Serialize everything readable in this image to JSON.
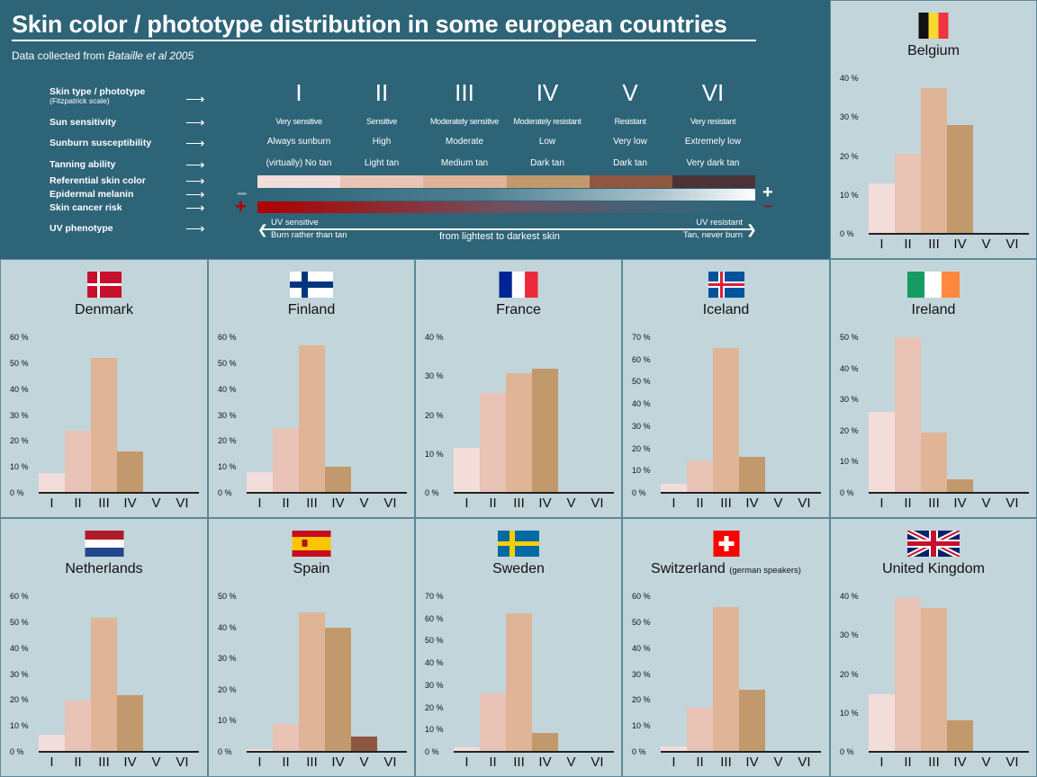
{
  "header": {
    "title": "Skin color / phototype distribution in some european countries",
    "subtitle_prefix": "Data collected from ",
    "subtitle_source": "Bataille et al 2005",
    "rows": [
      {
        "label": "Skin type / phototype",
        "sub": "(Fitzpatrick scale)"
      },
      {
        "label": "Sun sensitivity"
      },
      {
        "label": "Sunburn susceptibility"
      },
      {
        "label": "Tanning ability"
      },
      {
        "label": "Referential skin color"
      },
      {
        "label": "Epidermal melanin"
      },
      {
        "label": "Skin cancer risk"
      },
      {
        "label": "UV phenotype"
      }
    ],
    "arrow": "⟶",
    "phototypes": [
      {
        "roman": "I",
        "sensitivity": "Very sensitive",
        "sunburn": "Always sunburn",
        "tanning": "(virtually) No tan",
        "color": "#f2dddb"
      },
      {
        "roman": "II",
        "sensitivity": "Sensitive",
        "sunburn": "High",
        "tanning": "Light tan",
        "color": "#e8c3b6"
      },
      {
        "roman": "III",
        "sensitivity": "Moderately sensitive",
        "sunburn": "Moderate",
        "tanning": "Medium tan",
        "color": "#dfb497"
      },
      {
        "roman": "IV",
        "sensitivity": "Moderately resistant",
        "sunburn": "Low",
        "tanning": "Dark tan",
        "color": "#c2996c"
      },
      {
        "roman": "V",
        "sensitivity": "Resistant",
        "sunburn": "Very low",
        "tanning": "Dark tan",
        "color": "#8e5840"
      },
      {
        "roman": "VI",
        "sensitivity": "Very resistant",
        "sunburn": "Extremely low",
        "tanning": "Very dark tan",
        "color": "#4a3237"
      }
    ],
    "melanin_minus": "−",
    "melanin_plus": "+",
    "risk_plus": "+",
    "risk_minus": "−",
    "uv_left_top": "UV sensitive",
    "uv_left_bottom": "Burn rather than tan",
    "uv_right_top": "UV resistant",
    "uv_right_bottom": "Tan, never burn",
    "uv_center": "from lightest to darkest skin"
  },
  "chart_data": [
    {
      "type": "bar",
      "title": "Belgium",
      "categories": [
        "I",
        "II",
        "III",
        "IV",
        "V",
        "VI"
      ],
      "values": [
        13,
        20.5,
        37.5,
        28,
        0,
        0
      ],
      "ylim": [
        0,
        40
      ],
      "yticks": [
        "0 %",
        "10 %",
        "20 %",
        "30 %",
        "40 %"
      ],
      "ylabel": "",
      "xlabel": ""
    },
    {
      "type": "bar",
      "title": "Denmark",
      "categories": [
        "I",
        "II",
        "III",
        "IV",
        "V",
        "VI"
      ],
      "values": [
        7.5,
        24,
        52,
        16,
        0,
        0
      ],
      "ylim": [
        0,
        60
      ],
      "yticks": [
        "0 %",
        "10 %",
        "20 %",
        "30 %",
        "40 %",
        "50 %",
        "60 %"
      ]
    },
    {
      "type": "bar",
      "title": "Finland",
      "categories": [
        "I",
        "II",
        "III",
        "IV",
        "V",
        "VI"
      ],
      "values": [
        8,
        25,
        57,
        10,
        0,
        0
      ],
      "ylim": [
        0,
        60
      ],
      "yticks": [
        "0 %",
        "10 %",
        "20 %",
        "30 %",
        "40 %",
        "50 %",
        "60 %"
      ]
    },
    {
      "type": "bar",
      "title": "France",
      "categories": [
        "I",
        "II",
        "III",
        "IV",
        "V",
        "VI"
      ],
      "values": [
        11.5,
        25.7,
        30.7,
        31.8,
        0,
        0
      ],
      "ylim": [
        0,
        40
      ],
      "yticks": [
        "0 %",
        "10 %",
        "20 %",
        "30 %",
        "40 %"
      ]
    },
    {
      "type": "bar",
      "title": "Iceland",
      "categories": [
        "I",
        "II",
        "III",
        "IV",
        "V",
        "VI"
      ],
      "values": [
        4,
        14.5,
        65.3,
        16,
        0,
        0
      ],
      "ylim": [
        0,
        70
      ],
      "yticks": [
        "0 %",
        "10 %",
        "20 %",
        "30 %",
        "40 %",
        "50 %",
        "60 %",
        "70 %"
      ]
    },
    {
      "type": "bar",
      "title": "Ireland",
      "categories": [
        "I",
        "II",
        "III",
        "IV",
        "V",
        "VI"
      ],
      "values": [
        26,
        50,
        19.5,
        4.4,
        0,
        0
      ],
      "ylim": [
        0,
        50
      ],
      "yticks": [
        "0 %",
        "10 %",
        "20 %",
        "30 %",
        "40 %",
        "50 %"
      ]
    },
    {
      "type": "bar",
      "title": "Netherlands",
      "categories": [
        "I",
        "II",
        "III",
        "IV",
        "V",
        "VI"
      ],
      "values": [
        6.7,
        19.7,
        51.8,
        21.8,
        0,
        0
      ],
      "ylim": [
        0,
        60
      ],
      "yticks": [
        "0 %",
        "10 %",
        "20 %",
        "30 %",
        "40 %",
        "50 %",
        "60 %"
      ]
    },
    {
      "type": "bar",
      "title": "Spain",
      "categories": [
        "I",
        "II",
        "III",
        "IV",
        "V",
        "VI"
      ],
      "values": [
        1,
        8.9,
        44.7,
        39.8,
        5,
        0
      ],
      "ylim": [
        0,
        50
      ],
      "yticks": [
        "0 %",
        "10 %",
        "20 %",
        "30 %",
        "40 %",
        "50 %"
      ]
    },
    {
      "type": "bar",
      "title": "Sweden",
      "categories": [
        "I",
        "II",
        "III",
        "IV",
        "V",
        "VI"
      ],
      "values": [
        2.1,
        26.5,
        62.5,
        8.4,
        0,
        0
      ],
      "ylim": [
        0,
        70
      ],
      "yticks": [
        "0 %",
        "10 %",
        "20 %",
        "30 %",
        "40 %",
        "50 %",
        "60 %",
        "70 %"
      ]
    },
    {
      "type": "bar",
      "title": "Switzerland",
      "subtitle": "(german speakers)",
      "categories": [
        "I",
        "II",
        "III",
        "IV",
        "V",
        "VI"
      ],
      "values": [
        2.1,
        17,
        56,
        23.9,
        0,
        0
      ],
      "ylim": [
        0,
        60
      ],
      "yticks": [
        "0 %",
        "10 %",
        "20 %",
        "30 %",
        "40 %",
        "50 %",
        "60 %"
      ]
    },
    {
      "type": "bar",
      "title": "United Kingdom",
      "categories": [
        "I",
        "II",
        "III",
        "IV",
        "V",
        "VI"
      ],
      "values": [
        14.9,
        39.5,
        37,
        8,
        0,
        0
      ],
      "ylim": [
        0,
        40
      ],
      "yticks": [
        "0 %",
        "10 %",
        "20 %",
        "30 %",
        "40 %"
      ]
    }
  ],
  "flags": {
    "Belgium": "belgium-flag-icon",
    "Denmark": "denmark-flag-icon",
    "Finland": "finland-flag-icon",
    "France": "france-flag-icon",
    "Iceland": "iceland-flag-icon",
    "Ireland": "ireland-flag-icon",
    "Netherlands": "netherlands-flag-icon",
    "Spain": "spain-flag-icon",
    "Sweden": "sweden-flag-icon",
    "Switzerland": "switzerland-flag-icon",
    "United Kingdom": "united-kingdom-flag-icon"
  }
}
